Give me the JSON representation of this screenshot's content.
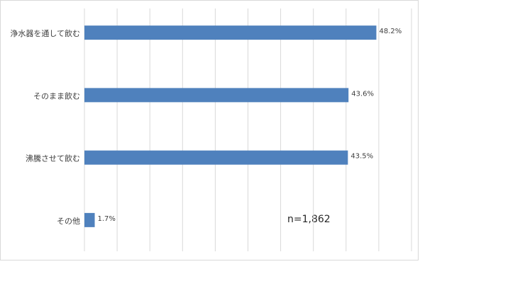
{
  "chart_data": {
    "type": "bar",
    "orientation": "horizontal",
    "categories": [
      "浄水器を通して飲む",
      "そのまま飲む",
      "沸騰させて飲む",
      "その他"
    ],
    "values": [
      48.2,
      43.6,
      43.5,
      1.7
    ],
    "value_labels": [
      "48.2%",
      "43.6%",
      "43.5%",
      "1.7%"
    ],
    "color": "#4f81bd",
    "xlim": [
      0,
      54
    ],
    "xticks": [
      0,
      5.4,
      10.8,
      16.2,
      21.6,
      27,
      32.4,
      37.8,
      43.2,
      48.6,
      54
    ],
    "grid": true,
    "annotation": "n=1,862"
  }
}
